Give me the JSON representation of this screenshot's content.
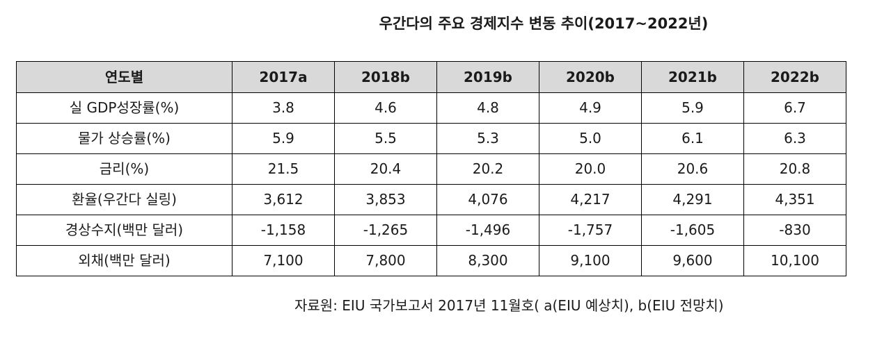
{
  "title": "우간다의 주요 경제지수 변동 추이(2017~2022년)",
  "table": {
    "header": [
      "연도별",
      "2017a",
      "2018b",
      "2019b",
      "2020b",
      "2021b",
      "2022b"
    ],
    "rows": [
      {
        "label": "실 GDP성장률(%)",
        "values": [
          "3.8",
          "4.6",
          "4.8",
          "4.9",
          "5.9",
          "6.7"
        ]
      },
      {
        "label": "물가 상승률(%)",
        "values": [
          "5.9",
          "5.5",
          "5.3",
          "5.0",
          "6.1",
          "6.3"
        ]
      },
      {
        "label": "금리(%)",
        "values": [
          "21.5",
          "20.4",
          "20.2",
          "20.0",
          "20.6",
          "20.8"
        ]
      },
      {
        "label": "환율(우간다 실링)",
        "values": [
          "3,612",
          "3,853",
          "4,076",
          "4,217",
          "4,291",
          "4,351"
        ]
      },
      {
        "label": "경상수지(백만 달러)",
        "values": [
          "-1,158",
          "-1,265",
          "-1,496",
          "-1,757",
          "-1,605",
          "-830"
        ]
      },
      {
        "label": "외채(백만 달러)",
        "values": [
          "7,100",
          "7,800",
          "8,300",
          "9,100",
          "9,600",
          "10,100"
        ]
      }
    ]
  },
  "source": "자료원: EIU 국가보고서 2017년 11월호( a(EIU 예상치), b(EIU 전망치)",
  "colors": {
    "header_bg": "#d9d9d9",
    "border": "#000000",
    "text": "#1a1a1a"
  }
}
